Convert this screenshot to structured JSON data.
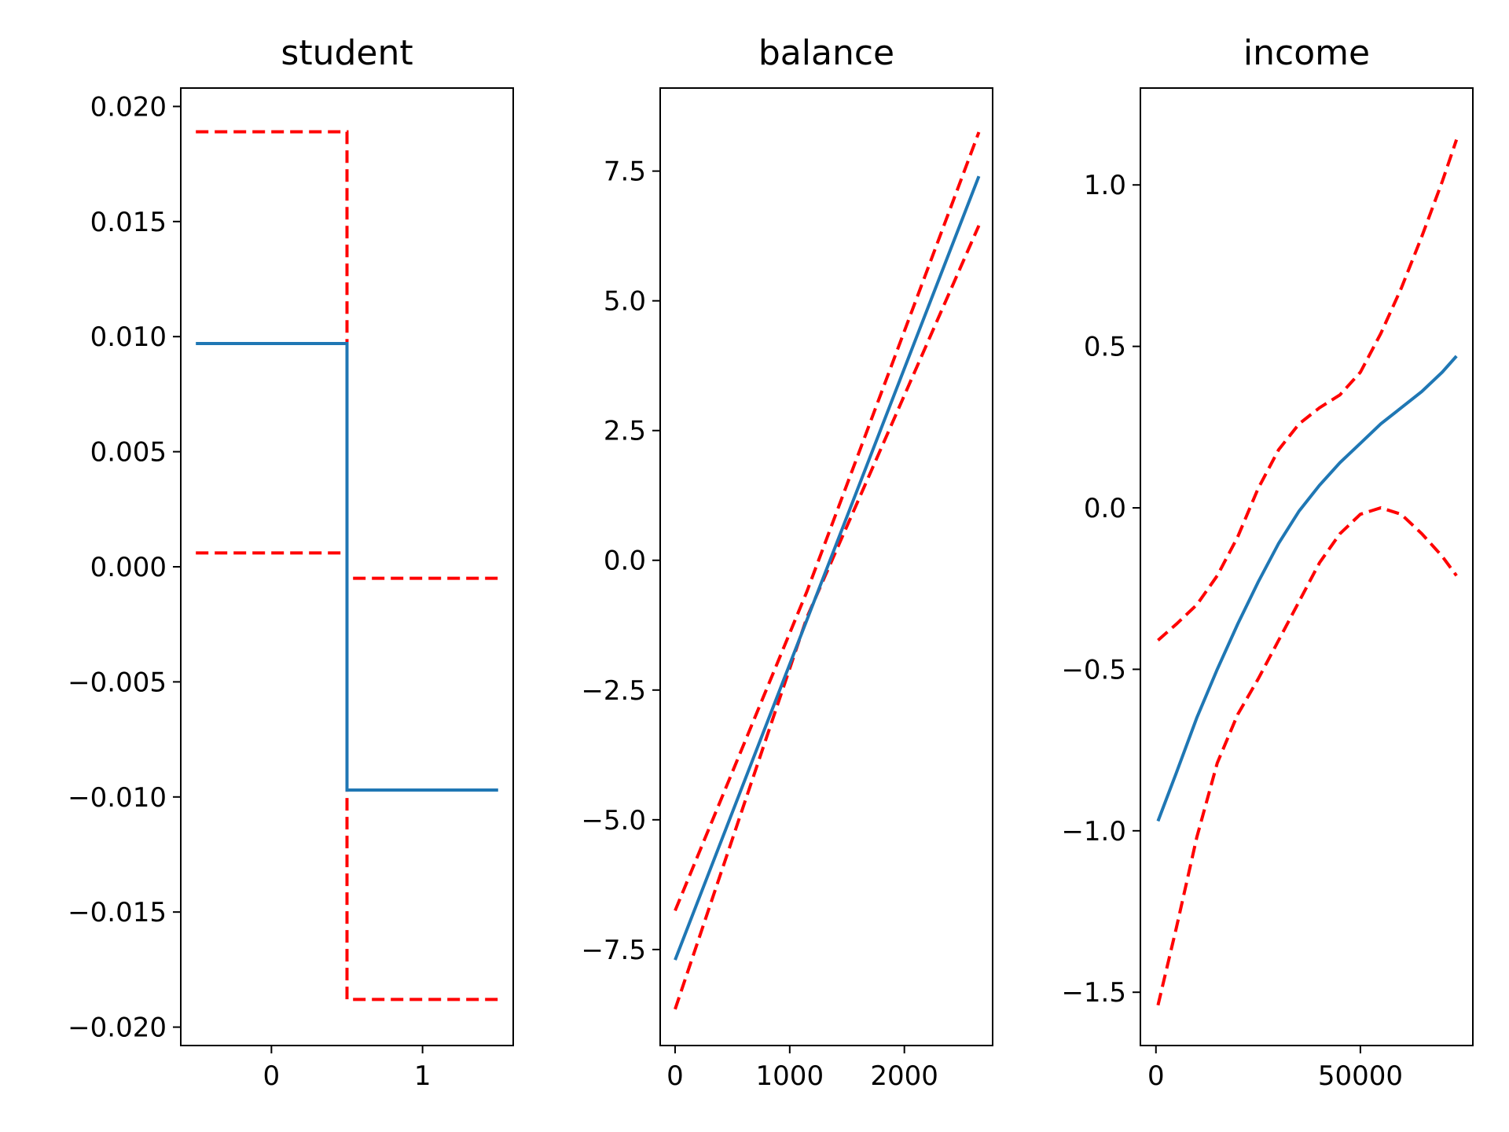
{
  "colors": {
    "fit": "#1f77b4",
    "band": "#ff0000"
  },
  "chart_data": [
    {
      "type": "line",
      "title": "student",
      "step": true,
      "xlim": [
        -0.6,
        1.6
      ],
      "ylim": [
        -0.0208,
        0.0208
      ],
      "xticks": [
        0,
        1
      ],
      "xtick_labels": [
        "0",
        "1"
      ],
      "yticks": [
        0.02,
        0.015,
        0.01,
        0.005,
        0.0,
        -0.005,
        -0.01,
        -0.015,
        -0.02
      ],
      "ytick_labels": [
        "0.020",
        "0.015",
        "0.010",
        "0.005",
        "0.000",
        "−0.005",
        "−0.010",
        "−0.015",
        "−0.020"
      ],
      "series": [
        {
          "role": "fit",
          "x": [
            -0.5,
            0.5,
            0.5,
            1.5
          ],
          "y": [
            0.0097,
            0.0097,
            -0.0097,
            -0.0097
          ]
        },
        {
          "role": "upper",
          "x": [
            -0.5,
            0.5,
            0.5,
            1.5
          ],
          "y": [
            0.0189,
            0.0189,
            -0.0005,
            -0.0005
          ]
        },
        {
          "role": "lower",
          "x": [
            -0.5,
            0.5,
            0.5,
            1.5
          ],
          "y": [
            0.0006,
            0.0006,
            -0.0188,
            -0.0188
          ]
        }
      ]
    },
    {
      "type": "line",
      "title": "balance",
      "xlim": [
        -130,
        2770
      ],
      "ylim": [
        -9.35,
        9.1
      ],
      "xticks": [
        0,
        1000,
        2000
      ],
      "xtick_labels": [
        "0",
        "1000",
        "2000"
      ],
      "yticks": [
        7.5,
        5.0,
        2.5,
        0.0,
        -2.5,
        -5.0,
        -7.5
      ],
      "ytick_labels": [
        "7.5",
        "5.0",
        "2.5",
        "0.0",
        "−2.5",
        "−5.0",
        "−7.5"
      ],
      "series": [
        {
          "role": "fit",
          "x": [
            0,
            2650
          ],
          "y": [
            -7.7,
            7.4
          ]
        },
        {
          "role": "upper",
          "x": [
            0,
            1150,
            2650
          ],
          "y": [
            -6.75,
            -0.6,
            8.25
          ]
        },
        {
          "role": "lower",
          "x": [
            0,
            1150,
            2650
          ],
          "y": [
            -8.65,
            -1.1,
            6.45
          ]
        }
      ]
    },
    {
      "type": "line",
      "title": "income",
      "xlim": [
        -3800,
        77500
      ],
      "ylim": [
        -1.665,
        1.3
      ],
      "xticks": [
        0,
        50000
      ],
      "xtick_labels": [
        "0",
        "50000"
      ],
      "yticks": [
        1.0,
        0.5,
        0.0,
        -0.5,
        -1.0,
        -1.5
      ],
      "ytick_labels": [
        "1.0",
        "0.5",
        "0.0",
        "−0.5",
        "−1.0",
        "−1.5"
      ],
      "series": [
        {
          "role": "fit",
          "x": [
            500,
            5000,
            10000,
            15000,
            20000,
            25000,
            30000,
            35000,
            40000,
            45000,
            50000,
            55000,
            60000,
            65000,
            70000,
            73500
          ],
          "y": [
            -0.97,
            -0.82,
            -0.65,
            -0.5,
            -0.36,
            -0.23,
            -0.11,
            -0.01,
            0.07,
            0.14,
            0.2,
            0.26,
            0.31,
            0.36,
            0.42,
            0.47
          ]
        },
        {
          "role": "upper",
          "x": [
            500,
            5000,
            10000,
            15000,
            20000,
            25000,
            30000,
            35000,
            40000,
            45000,
            50000,
            55000,
            60000,
            65000,
            70000,
            73500
          ],
          "y": [
            -0.41,
            -0.36,
            -0.3,
            -0.21,
            -0.09,
            0.06,
            0.18,
            0.26,
            0.31,
            0.35,
            0.42,
            0.54,
            0.68,
            0.84,
            1.01,
            1.14
          ]
        },
        {
          "role": "lower",
          "x": [
            500,
            5000,
            10000,
            15000,
            20000,
            25000,
            30000,
            35000,
            40000,
            45000,
            50000,
            55000,
            60000,
            65000,
            70000,
            73500
          ],
          "y": [
            -1.54,
            -1.3,
            -1.02,
            -0.79,
            -0.64,
            -0.53,
            -0.41,
            -0.29,
            -0.17,
            -0.08,
            -0.02,
            0.0,
            -0.02,
            -0.08,
            -0.15,
            -0.21
          ]
        }
      ]
    }
  ]
}
